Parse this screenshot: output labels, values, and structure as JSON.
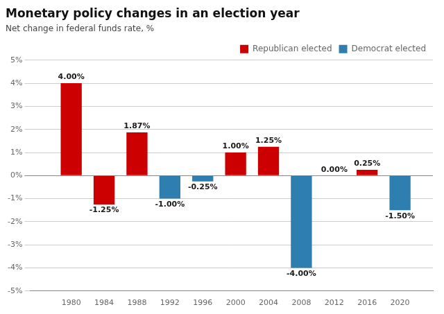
{
  "chart_data": {
    "type": "bar",
    "title": "Monetary policy changes in an election year",
    "subtitle": "Net change in federal funds rate, %",
    "x": [
      1980,
      1984,
      1988,
      1992,
      1996,
      2000,
      2004,
      2008,
      2012,
      2016,
      2020
    ],
    "series": [
      {
        "name": "Republican elected",
        "color": "#cc0000",
        "values": [
          4.0,
          -1.25,
          1.87,
          null,
          null,
          1.0,
          1.25,
          null,
          0.0,
          0.25,
          null
        ],
        "value_labels": [
          "4.00%",
          "-1.25%",
          "1.87%",
          null,
          null,
          "1.00%",
          "1.25%",
          null,
          "0.00%",
          "0.25%",
          null
        ]
      },
      {
        "name": "Democrat elected",
        "color": "#2e7fb0",
        "values": [
          null,
          null,
          null,
          -1.0,
          -0.25,
          null,
          null,
          -4.0,
          null,
          null,
          -1.5
        ],
        "value_labels": [
          null,
          null,
          null,
          "-1.00%",
          "-0.25%",
          null,
          null,
          "-4.00%",
          null,
          null,
          "-1.50%"
        ]
      }
    ],
    "xlim": [
      1975,
      2024
    ],
    "xticks": [
      1980,
      1984,
      1988,
      1992,
      1996,
      2000,
      2004,
      2008,
      2012,
      2016,
      2020
    ],
    "ylim": [
      -5,
      5
    ],
    "yticks": [
      {
        "value": -5,
        "label": "-5%"
      },
      {
        "value": -4,
        "label": "-4%"
      },
      {
        "value": -3,
        "label": "-3%"
      },
      {
        "value": -2,
        "label": "-2%"
      },
      {
        "value": -1,
        "label": "-1%"
      },
      {
        "value": 0,
        "label": "0%"
      },
      {
        "value": 1,
        "label": "1%"
      },
      {
        "value": 2,
        "label": "2%"
      },
      {
        "value": 3,
        "label": "3%"
      },
      {
        "value": 4,
        "label": "4%"
      },
      {
        "value": 5,
        "label": "5%"
      }
    ],
    "grid": true,
    "legend": "upper right",
    "data_labels": true
  }
}
